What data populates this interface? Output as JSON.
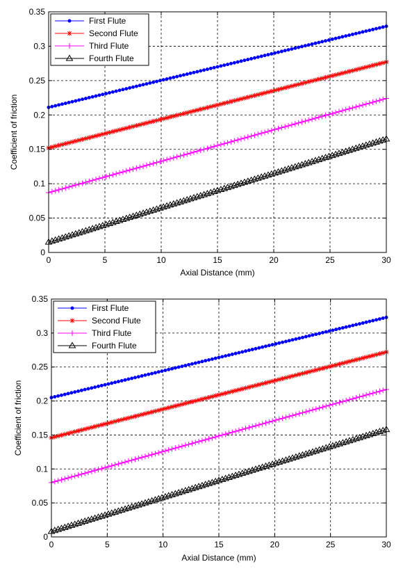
{
  "chart_data": [
    {
      "type": "line",
      "xlabel": "Axial Distance (mm)",
      "ylabel": "Coefficient of friction",
      "xlim": [
        0,
        30
      ],
      "ylim": [
        0,
        0.35
      ],
      "xticks": [
        "0",
        "5",
        "10",
        "15",
        "20",
        "25",
        "30"
      ],
      "yticks": [
        "0",
        "0.05",
        "0.1",
        "0.15",
        "0.2",
        "0.25",
        "0.3",
        "0.35"
      ],
      "grid": true,
      "legend_position": "top-left",
      "series": [
        {
          "name": "First Flute",
          "color": "#0000ff",
          "marker": "dot",
          "start": [
            0,
            0.211
          ],
          "end": [
            30,
            0.329
          ]
        },
        {
          "name": "Second Flute",
          "color": "#ff0000",
          "marker": "star",
          "start": [
            0,
            0.152
          ],
          "end": [
            30,
            0.277
          ]
        },
        {
          "name": "Third Flute",
          "color": "#ff00ff",
          "marker": "plus",
          "start": [
            0,
            0.087
          ],
          "end": [
            30,
            0.224
          ]
        },
        {
          "name": "Fourth Flute",
          "color": "#000000",
          "marker": "triangle",
          "start": [
            0,
            0.015
          ],
          "end": [
            30,
            0.165
          ]
        }
      ]
    },
    {
      "type": "line",
      "xlabel": "Axial Distance (mm)",
      "ylabel": "Coefficient of friction",
      "xlim": [
        0,
        30
      ],
      "ylim": [
        0,
        0.35
      ],
      "xticks": [
        "0",
        "5",
        "10",
        "15",
        "20",
        "25",
        "30"
      ],
      "yticks": [
        "0",
        "0.05",
        "0.1",
        "0.15",
        "0.2",
        "0.25",
        "0.3",
        "0.35"
      ],
      "grid": true,
      "legend_position": "top-left",
      "series": [
        {
          "name": "First Flute",
          "color": "#0000ff",
          "marker": "dot",
          "start": [
            0,
            0.205
          ],
          "end": [
            30,
            0.323
          ]
        },
        {
          "name": "Second Flute",
          "color": "#ff0000",
          "marker": "star",
          "start": [
            0,
            0.146
          ],
          "end": [
            30,
            0.272
          ]
        },
        {
          "name": "Third Flute",
          "color": "#ff00ff",
          "marker": "plus",
          "start": [
            0,
            0.08
          ],
          "end": [
            30,
            0.217
          ]
        },
        {
          "name": "Fourth Flute",
          "color": "#000000",
          "marker": "triangle",
          "start": [
            0,
            0.008
          ],
          "end": [
            30,
            0.158
          ]
        }
      ]
    }
  ]
}
